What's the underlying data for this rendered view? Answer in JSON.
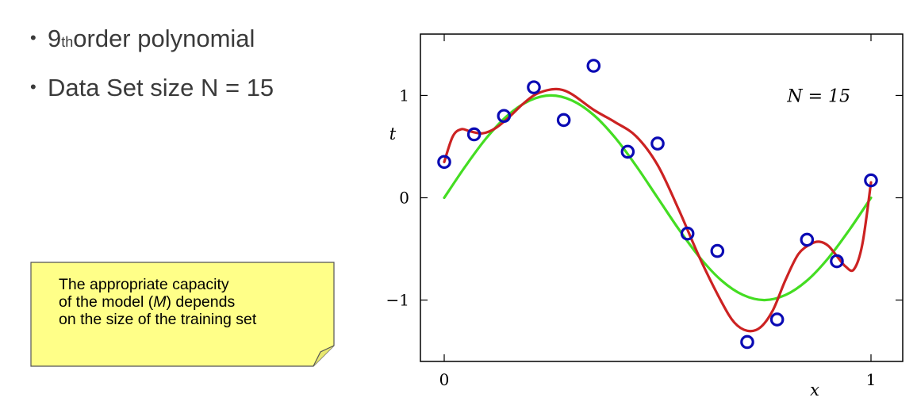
{
  "bullets": [
    {
      "main": "9",
      "sup": "th",
      "rest": " order polynomial"
    },
    {
      "main": "Data Set size N = 15"
    }
  ],
  "note": {
    "line1": "The appropriate capacity",
    "line2_before": "of the model (",
    "line2_var": "M",
    "line2_after": ") depends",
    "line3": "on the size of the training set",
    "fill_color": "#ffff88",
    "border_color": "#555555"
  },
  "chart_data": {
    "type": "scatter",
    "annotation": "N = 15",
    "xlabel": "x",
    "ylabel": "t",
    "xlim": [
      0,
      1
    ],
    "ylim": [
      -1.6,
      1.6
    ],
    "xticks": [
      0,
      1
    ],
    "yticks": [
      -1,
      0,
      1
    ],
    "grid": false,
    "points_color": "#0a0ab4",
    "points": [
      [
        0.0,
        0.35
      ],
      [
        0.07,
        0.62
      ],
      [
        0.14,
        0.8
      ],
      [
        0.21,
        1.08
      ],
      [
        0.28,
        0.76
      ],
      [
        0.35,
        1.29
      ],
      [
        0.43,
        0.45
      ],
      [
        0.5,
        0.53
      ],
      [
        0.57,
        -0.35
      ],
      [
        0.64,
        -0.52
      ],
      [
        0.71,
        -1.41
      ],
      [
        0.78,
        -1.19
      ],
      [
        0.85,
        -0.41
      ],
      [
        0.92,
        -0.62
      ],
      [
        1.0,
        0.17
      ]
    ],
    "series": [
      {
        "type": "line",
        "color": "#44dd22",
        "x": [
          0,
          0.05,
          0.1,
          0.15,
          0.2,
          0.25,
          0.3,
          0.35,
          0.4,
          0.45,
          0.5,
          0.55,
          0.6,
          0.65,
          0.7,
          0.75,
          0.8,
          0.85,
          0.9,
          0.95,
          1.0
        ],
        "values": [
          0,
          0.31,
          0.59,
          0.81,
          0.95,
          1.0,
          0.95,
          0.81,
          0.59,
          0.31,
          0,
          -0.31,
          -0.59,
          -0.81,
          -0.95,
          -1.0,
          -0.95,
          -0.81,
          -0.59,
          -0.31,
          0
        ]
      },
      {
        "type": "line",
        "color": "#cc2222",
        "x": [
          0,
          0.02,
          0.04,
          0.06,
          0.09,
          0.12,
          0.15,
          0.18,
          0.21,
          0.24,
          0.27,
          0.3,
          0.35,
          0.4,
          0.45,
          0.5,
          0.55,
          0.6,
          0.65,
          0.68,
          0.71,
          0.74,
          0.77,
          0.8,
          0.83,
          0.86,
          0.88,
          0.9,
          0.92,
          0.94,
          0.96,
          0.98,
          1.0
        ],
        "values": [
          0.35,
          0.6,
          0.67,
          0.65,
          0.63,
          0.68,
          0.78,
          0.9,
          1.0,
          1.05,
          1.06,
          1.01,
          0.86,
          0.74,
          0.6,
          0.32,
          -0.12,
          -0.6,
          -1.02,
          -1.22,
          -1.3,
          -1.27,
          -1.1,
          -0.8,
          -0.55,
          -0.45,
          -0.43,
          -0.47,
          -0.57,
          -0.67,
          -0.7,
          -0.45,
          0.15
        ]
      }
    ]
  }
}
